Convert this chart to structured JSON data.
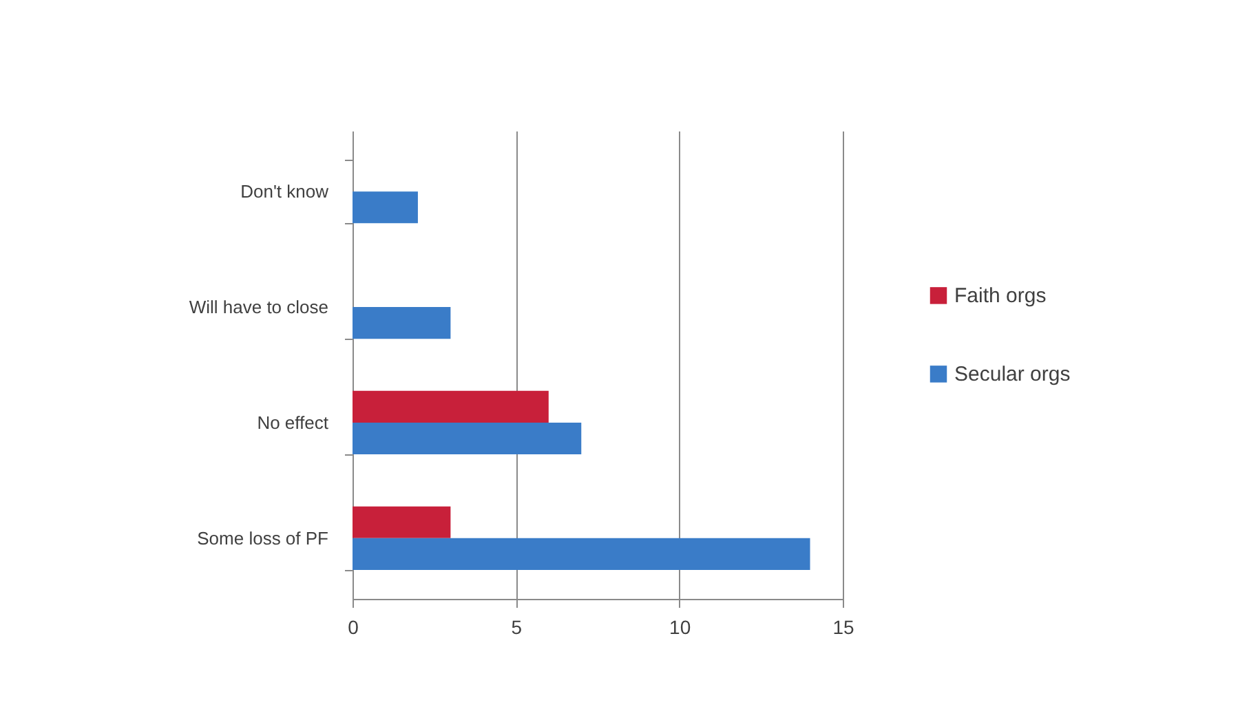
{
  "chart_data": {
    "type": "bar",
    "orientation": "horizontal",
    "categories": [
      "Don't know",
      "Will have to close",
      "No effect",
      "Some loss of PF"
    ],
    "series": [
      {
        "name": "Faith orgs",
        "color": "#c8203a",
        "values": [
          null,
          null,
          6,
          3
        ]
      },
      {
        "name": "Secular orgs",
        "color": "#3a7cc8",
        "values": [
          2,
          3,
          7,
          14
        ]
      }
    ],
    "xlim": [
      0,
      15
    ],
    "xticks": [
      0,
      5,
      10,
      15
    ],
    "grid": "x",
    "legend": "right"
  }
}
